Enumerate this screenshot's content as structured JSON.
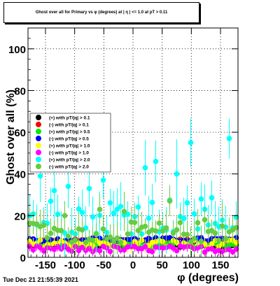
{
  "title": "Ghost over all for Primary vs φ (degrees) at | η | <= 1.0 at pT > 0.11",
  "timestamp": "Tue Dec 21 21:55:39 2021",
  "chart_data": {
    "type": "scatter",
    "title": "Ghost over all for Primary vs φ (degrees) at | η | <= 1.0 at pT > 0.11",
    "xlabel": "φ (degrees)",
    "ylabel": "Ghost over all (%)",
    "xlim": [
      -180,
      180
    ],
    "ylim": [
      0,
      110
    ],
    "xticks": [
      -150,
      -100,
      -50,
      0,
      50,
      100,
      150
    ],
    "yticks": [
      0,
      20,
      40,
      60,
      80,
      100
    ],
    "grid": true,
    "legend_position": "left",
    "legend": [
      {
        "label": "(+) with pT/|q| > 0.1",
        "color": "#000000"
      },
      {
        "label": "(-) with pT/|q| > 0.1",
        "color": "#ff0000"
      },
      {
        "label": "(+) with pT/|q| > 0.5",
        "color": "#00ee00"
      },
      {
        "label": "(-) with pT/|q| > 0.5",
        "color": "#0000ff"
      },
      {
        "label": "(+) with pT/|q| > 1.0",
        "color": "#ffff00"
      },
      {
        "label": "(-) with pT/|q| > 1.0",
        "color": "#ff00ff"
      },
      {
        "label": "(+) with pT/|q| > 2.0",
        "color": "#00ffff"
      },
      {
        "label": "(-) with pT/|q| > 2.0",
        "color": "#66cc44"
      }
    ],
    "series": [
      {
        "name": "(+) with pT/|q| > 0.1",
        "color": "#000000",
        "base": 5.5,
        "spread": 0.6,
        "err": 1.0
      },
      {
        "name": "(-) with pT/|q| > 0.1",
        "color": "#ff0000",
        "base": 8.0,
        "spread": 0.8,
        "err": 1.2
      },
      {
        "name": "(+) with pT/|q| > 0.5",
        "color": "#00ee00",
        "base": 6.0,
        "spread": 1.0,
        "err": 1.5
      },
      {
        "name": "(-) with pT/|q| > 0.5",
        "color": "#0000ff",
        "base": 8.5,
        "spread": 1.0,
        "err": 1.5
      },
      {
        "name": "(+) with pT/|q| > 1.0",
        "color": "#ffff00",
        "base": 6.5,
        "spread": 2.0,
        "err": 2.5
      },
      {
        "name": "(-) with pT/|q| > 1.0",
        "color": "#ff00ff",
        "base": 4.0,
        "spread": 1.5,
        "err": 2.0
      },
      {
        "name": "(+) with pT/|q| > 2.0",
        "color": "#00ffff",
        "base": 20.0,
        "spread": 9.0,
        "err": 9.0,
        "peaks": [
          [
            -165,
            39
          ],
          [
            -140,
            32
          ],
          [
            -115,
            34
          ],
          [
            -78,
            33
          ],
          [
            -52,
            37
          ],
          [
            15,
            43
          ],
          [
            35,
            46
          ],
          [
            70,
            40
          ],
          [
            98,
            55
          ],
          [
            112,
            28
          ],
          [
            163,
            57
          ]
        ]
      },
      {
        "name": "(-) with pT/|q| > 2.0",
        "color": "#66cc44",
        "base": 12.0,
        "spread": 5.0,
        "err": 6.0,
        "peaks": [
          [
            -170,
            16
          ],
          [
            -120,
            20
          ],
          [
            -60,
            23
          ],
          [
            -20,
            22
          ],
          [
            60,
            27
          ],
          [
            120,
            18
          ],
          [
            150,
            15
          ]
        ]
      }
    ]
  }
}
